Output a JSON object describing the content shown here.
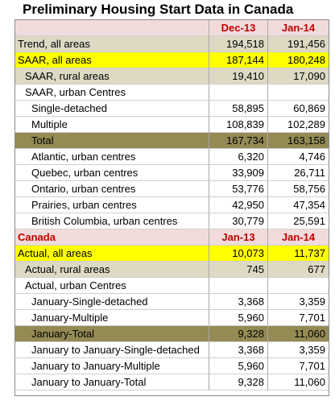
{
  "title": "Preliminary Housing Start Data in Canada",
  "section1": {
    "col1": "Dec-13",
    "col2": "Jan-14",
    "rows": [
      {
        "label": "Trend, all areas",
        "v1": "194,518",
        "v2": "191,456"
      },
      {
        "label": "SAAR, all areas",
        "v1": "187,144",
        "v2": "180,248"
      },
      {
        "label": "SAAR, rural areas",
        "v1": "19,410",
        "v2": "17,090"
      },
      {
        "label": "SAAR, urban Centres",
        "v1": "",
        "v2": ""
      },
      {
        "label": "Single-detached",
        "v1": "58,895",
        "v2": "60,869"
      },
      {
        "label": "Multiple",
        "v1": "108,839",
        "v2": "102,289"
      },
      {
        "label": "Total",
        "v1": "167,734",
        "v2": "163,158"
      },
      {
        "label": "Atlantic, urban centres",
        "v1": "6,320",
        "v2": "4,746"
      },
      {
        "label": "Quebec, urban centres",
        "v1": "33,909",
        "v2": "26,711"
      },
      {
        "label": "Ontario, urban centres",
        "v1": "53,776",
        "v2": "58,756"
      },
      {
        "label": "Prairies, urban centres",
        "v1": "42,950",
        "v2": "47,354"
      },
      {
        "label": "British Columbia, urban centres",
        "v1": "30,779",
        "v2": "25,591"
      }
    ]
  },
  "section2": {
    "label": "Canada",
    "col1": "Jan-13",
    "col2": "Jan-14",
    "rows": [
      {
        "label": "Actual, all areas",
        "v1": "10,073",
        "v2": "11,737"
      },
      {
        "label": "Actual, rural areas",
        "v1": "745",
        "v2": "677"
      },
      {
        "label": "Actual, urban Centres",
        "v1": "",
        "v2": ""
      },
      {
        "label": "January-Single-detached",
        "v1": "3,368",
        "v2": "3,359"
      },
      {
        "label": "January-Multiple",
        "v1": "5,960",
        "v2": "7,701"
      },
      {
        "label": "January-Total",
        "v1": "9,328",
        "v2": "11,060"
      },
      {
        "label": "January to January-Single-detached",
        "v1": "3,368",
        "v2": "3,359"
      },
      {
        "label": "January to January-Multiple",
        "v1": "5,960",
        "v2": "7,701"
      },
      {
        "label": "January to January-Total",
        "v1": "9,328",
        "v2": "11,060"
      }
    ]
  },
  "colors": {
    "header_red": "#c00000",
    "header_bg": "#f2dcdb",
    "highlight_yellow": "#ffff00",
    "tan": "#ddd9c3",
    "olive": "#948a54"
  }
}
